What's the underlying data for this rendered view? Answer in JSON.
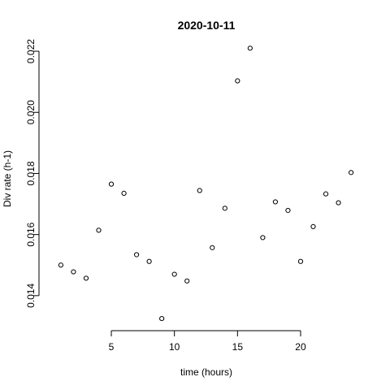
{
  "chart_data": {
    "type": "scatter",
    "title": "2020-10-11",
    "xlabel": "time (hours)",
    "ylabel": "Div rate (h-1)",
    "xlim": [
      0.04,
      24.96
    ],
    "ylim": [
      0.013172,
      0.022108
    ],
    "xticks": [
      5,
      10,
      15,
      20
    ],
    "xtick_labels": [
      "5",
      "10",
      "15",
      "20"
    ],
    "yticks": [
      0.014,
      0.016,
      0.018,
      0.02,
      0.022
    ],
    "ytick_labels": [
      "0.014",
      "0.016",
      "0.018",
      "0.020",
      "0.022"
    ],
    "grid": false,
    "series": [
      {
        "marker": "open-circle",
        "x": [
          1,
          2,
          3,
          4,
          5,
          6,
          7,
          8,
          9,
          10,
          11,
          12,
          13,
          14,
          15,
          16,
          17,
          18,
          19,
          20,
          21,
          22,
          23,
          24
        ],
        "y": [
          0.015,
          0.01478,
          0.01457,
          0.01614,
          0.01765,
          0.01735,
          0.01534,
          0.01512,
          0.01325,
          0.0147,
          0.01448,
          0.01744,
          0.01557,
          0.01686,
          0.02103,
          0.0221,
          0.0159,
          0.01707,
          0.01679,
          0.01512,
          0.01626,
          0.01733,
          0.01704,
          0.01803
        ]
      }
    ]
  }
}
